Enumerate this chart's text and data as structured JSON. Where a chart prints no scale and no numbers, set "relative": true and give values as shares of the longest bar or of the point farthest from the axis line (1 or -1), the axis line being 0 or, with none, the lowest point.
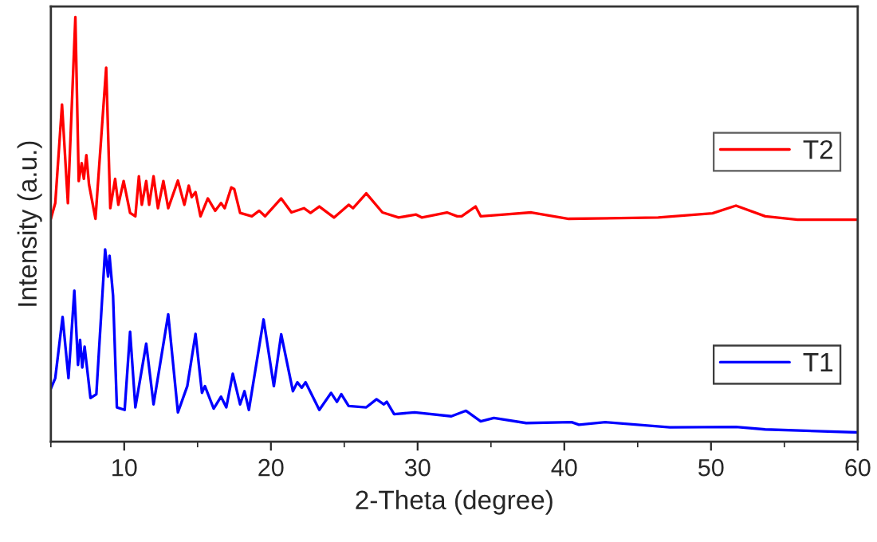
{
  "chart_data": {
    "type": "line",
    "xlabel": "2-Theta (degree)",
    "ylabel": "Intensity (a.u.)",
    "relative": true,
    "xlim": [
      5,
      60
    ],
    "xticks": [
      10,
      20,
      30,
      40,
      50,
      60
    ],
    "grid": false,
    "legend": "right",
    "tick_labels": "x",
    "series": [
      {
        "name": "T2",
        "color": "#ff0000",
        "x": [
          5.0,
          5.3,
          5.76,
          6.16,
          6.67,
          6.9,
          7.1,
          7.25,
          7.42,
          7.6,
          8.04,
          8.77,
          9.05,
          9.38,
          9.6,
          9.96,
          10.4,
          10.76,
          11.0,
          11.2,
          11.5,
          11.7,
          12.0,
          12.3,
          12.67,
          13.0,
          13.66,
          14.1,
          14.4,
          14.6,
          14.86,
          15.2,
          15.7,
          16.2,
          16.6,
          16.85,
          17.3,
          17.5,
          17.9,
          18.7,
          19.2,
          19.6,
          20.7,
          21.4,
          22.25,
          22.7,
          23.3,
          24.3,
          25.3,
          25.6,
          26.5,
          27.6,
          28.7,
          29.9,
          30.3,
          32.0,
          32.7,
          33.0,
          33.95,
          34.3,
          35.9,
          37.75,
          40.3,
          46.4,
          50.1,
          51.7,
          53.7,
          55.9,
          60.0
        ],
        "values": [
          0.525,
          0.562,
          0.794,
          0.562,
          1.0,
          0.614,
          0.656,
          0.619,
          0.675,
          0.606,
          0.525,
          0.881,
          0.55,
          0.619,
          0.558,
          0.614,
          0.539,
          0.531,
          0.625,
          0.558,
          0.614,
          0.558,
          0.625,
          0.55,
          0.614,
          0.55,
          0.615,
          0.558,
          0.603,
          0.576,
          0.588,
          0.531,
          0.573,
          0.544,
          0.562,
          0.55,
          0.599,
          0.595,
          0.539,
          0.531,
          0.544,
          0.531,
          0.573,
          0.54,
          0.55,
          0.539,
          0.554,
          0.528,
          0.558,
          0.55,
          0.585,
          0.54,
          0.528,
          0.535,
          0.528,
          0.54,
          0.531,
          0.531,
          0.554,
          0.531,
          0.535,
          0.54,
          0.525,
          0.528,
          0.538,
          0.556,
          0.531,
          0.523,
          0.523
        ]
      },
      {
        "name": "T1",
        "color": "#0000ff",
        "x": [
          5.0,
          5.3,
          5.8,
          6.2,
          6.6,
          6.85,
          6.99,
          7.14,
          7.3,
          7.7,
          8.1,
          8.7,
          8.9,
          9.0,
          9.24,
          9.5,
          10.03,
          10.4,
          10.76,
          11.5,
          12.0,
          13.0,
          13.66,
          14.3,
          14.86,
          15.3,
          15.5,
          16.1,
          16.6,
          16.96,
          17.4,
          17.9,
          18.2,
          18.5,
          19.5,
          20.2,
          20.7,
          21.5,
          21.8,
          22.1,
          22.36,
          23.3,
          24.1,
          24.5,
          24.8,
          25.3,
          26.5,
          27.2,
          27.7,
          27.9,
          28.4,
          29.8,
          32.3,
          33.3,
          34.3,
          35.2,
          37.4,
          40.5,
          41.0,
          42.8,
          47.2,
          51.7,
          53.7,
          60.0
        ],
        "values": [
          0.125,
          0.15,
          0.294,
          0.15,
          0.356,
          0.181,
          0.24,
          0.175,
          0.224,
          0.103,
          0.112,
          0.453,
          0.389,
          0.438,
          0.344,
          0.081,
          0.075,
          0.259,
          0.081,
          0.231,
          0.088,
          0.3,
          0.069,
          0.131,
          0.254,
          0.115,
          0.131,
          0.078,
          0.106,
          0.081,
          0.16,
          0.088,
          0.119,
          0.075,
          0.288,
          0.131,
          0.253,
          0.119,
          0.14,
          0.127,
          0.14,
          0.075,
          0.115,
          0.094,
          0.112,
          0.084,
          0.081,
          0.1,
          0.088,
          0.094,
          0.065,
          0.069,
          0.06,
          0.073,
          0.048,
          0.056,
          0.044,
          0.046,
          0.04,
          0.046,
          0.034,
          0.035,
          0.029,
          0.022
        ]
      }
    ]
  }
}
